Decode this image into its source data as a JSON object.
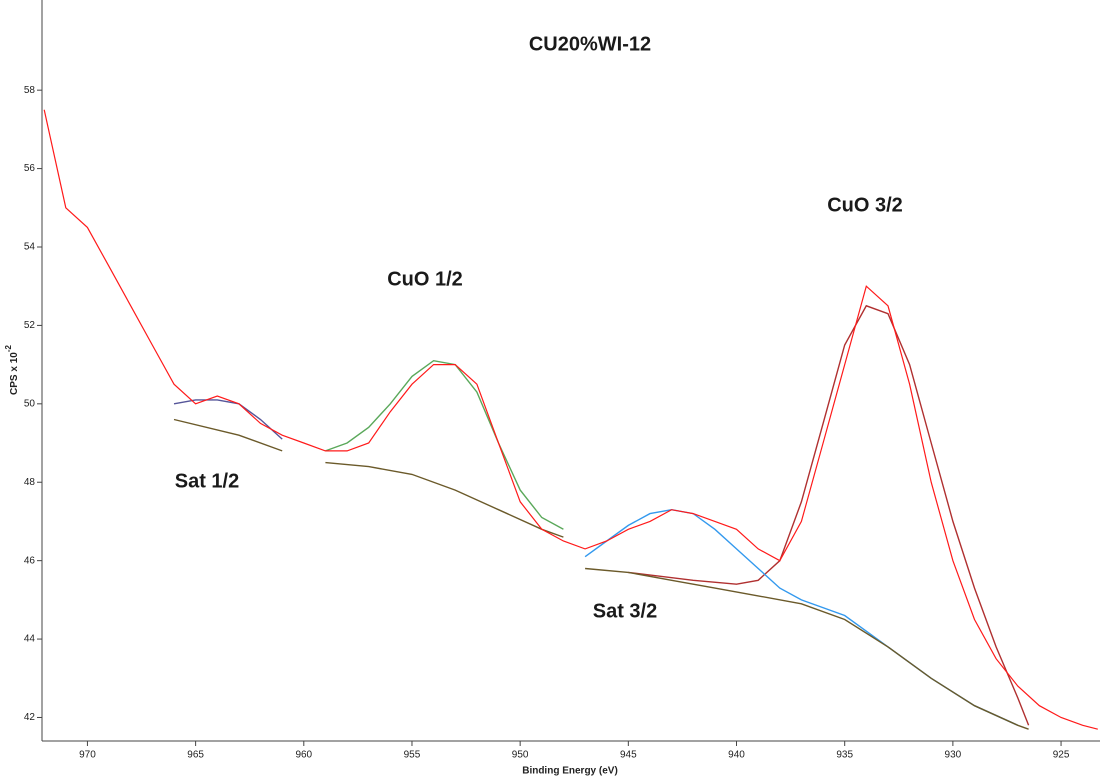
{
  "chart_data": {
    "type": "line",
    "title": "CU20%WI-12",
    "x_label": "Binding Energy (eV)",
    "y_label": "CPS x 10",
    "y_label_exponent": "-2",
    "xlim": [
      972.1,
      923.2
    ],
    "ylim": [
      41.4,
      60.3
    ],
    "xticks": [
      970,
      965,
      960,
      955,
      950,
      945,
      940,
      935,
      930,
      925
    ],
    "yticks": [
      42,
      44,
      46,
      48,
      50,
      52,
      54,
      56,
      58
    ],
    "annotations": [
      "CuO 1/2",
      "CuO 3/2",
      "Sat 1/2",
      "Sat 3/2"
    ],
    "series": [
      {
        "color": "#ff1a1a",
        "x": [
          972,
          971,
          970,
          969,
          968,
          967,
          966,
          965,
          964,
          963,
          962,
          961,
          960,
          959,
          958,
          957,
          956,
          955,
          954,
          953,
          952,
          951,
          950,
          949,
          948,
          947,
          946,
          945,
          944,
          943,
          942,
          941,
          940,
          939,
          938,
          937,
          936,
          935,
          934,
          933,
          932,
          931,
          930,
          929,
          928,
          927,
          926,
          925,
          924,
          923.3
        ],
        "values": [
          57.5,
          55.0,
          54.5,
          53.5,
          52.5,
          51.5,
          50.5,
          50.0,
          50.2,
          50.0,
          49.5,
          49.2,
          49.0,
          48.8,
          48.8,
          49.0,
          49.8,
          50.5,
          51.0,
          51.0,
          50.5,
          49.0,
          47.5,
          46.8,
          46.5,
          46.3,
          46.5,
          46.8,
          47.0,
          47.3,
          47.2,
          47.0,
          46.8,
          46.3,
          46.0,
          47.0,
          49.0,
          51.0,
          53.0,
          52.5,
          50.5,
          48.0,
          46.0,
          44.5,
          43.5,
          42.8,
          42.3,
          42.0,
          41.8,
          41.7
        ]
      },
      {
        "color": "#6b5a2a",
        "x": [
          966,
          963,
          961,
          960,
          959,
          957,
          955,
          953,
          951,
          949,
          948,
          947.5,
          947,
          945,
          943,
          941,
          939,
          937,
          935,
          933,
          931,
          929,
          927,
          926.5
        ],
        "values": [
          49.6,
          49.2,
          48.8,
          null,
          48.5,
          48.4,
          48.2,
          47.8,
          47.3,
          46.8,
          46.6,
          null,
          45.8,
          45.7,
          45.5,
          45.3,
          45.1,
          44.9,
          44.5,
          43.8,
          43.0,
          42.3,
          41.8,
          41.7
        ]
      },
      {
        "color": "#555599",
        "x": [
          966,
          965,
          964,
          963,
          962,
          961
        ],
        "values": [
          50.0,
          50.1,
          50.1,
          50.0,
          49.6,
          49.1
        ]
      },
      {
        "color": "#5aa85a",
        "x": [
          959,
          958,
          957,
          956,
          955,
          954,
          953,
          952,
          951,
          950,
          949,
          948
        ],
        "values": [
          48.8,
          49.0,
          49.4,
          50.0,
          50.7,
          51.1,
          51.0,
          50.3,
          49.0,
          47.8,
          47.1,
          46.8
        ]
      },
      {
        "color": "#3399ee",
        "x": [
          947,
          946,
          945,
          944,
          943,
          942,
          941,
          940,
          939,
          938,
          937,
          935,
          933,
          931,
          929,
          927
        ],
        "values": [
          46.1,
          46.5,
          46.9,
          47.2,
          47.3,
          47.2,
          46.8,
          46.3,
          45.8,
          45.3,
          45.0,
          44.6,
          43.8,
          43.0,
          42.3,
          41.8
        ]
      },
      {
        "color": "#b03030",
        "x": [
          945,
          942,
          940,
          939,
          938,
          937,
          936,
          935,
          934,
          933,
          932,
          931,
          930,
          929,
          928,
          927,
          926.5
        ],
        "values": [
          45.7,
          45.5,
          45.4,
          45.5,
          46.0,
          47.5,
          49.5,
          51.5,
          52.5,
          52.3,
          51.0,
          49.0,
          47.0,
          45.3,
          43.8,
          42.5,
          41.8
        ]
      }
    ]
  }
}
